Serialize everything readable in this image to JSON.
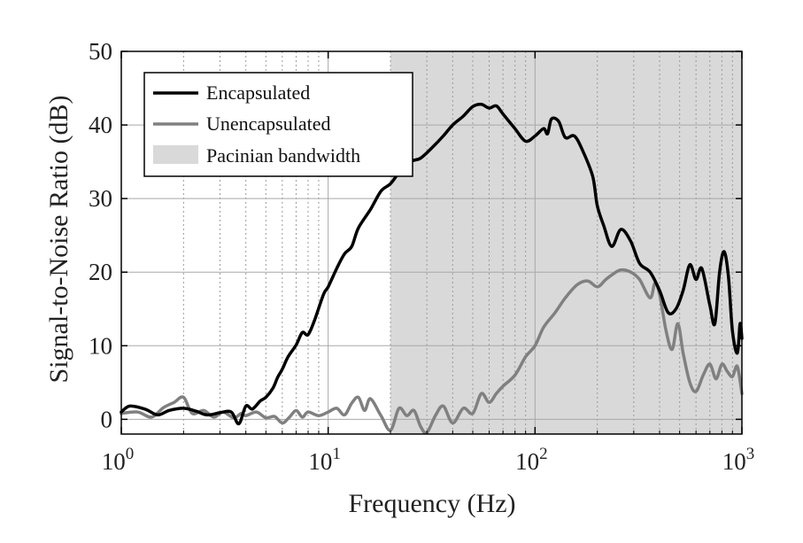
{
  "chart_data": {
    "type": "line",
    "title": "",
    "xlabel": "Frequency (Hz)",
    "ylabel": "Signal-to-Noise Ratio (dB)",
    "x_scale": "log",
    "xlim": [
      1,
      1000
    ],
    "ylim": [
      -2,
      50
    ],
    "y_ticks": [
      "0",
      "10",
      "20",
      "30",
      "40",
      "50"
    ],
    "x_ticks": [
      {
        "base": "10",
        "exp": "0",
        "value": 1
      },
      {
        "base": "10",
        "exp": "1",
        "value": 10
      },
      {
        "base": "10",
        "exp": "2",
        "value": 100
      },
      {
        "base": "10",
        "exp": "3",
        "value": 1000
      }
    ],
    "grid": true,
    "legend_position": "top-left",
    "band": {
      "name": "Pacinian bandwidth",
      "x_start": 20,
      "x_end": 1000,
      "color": "#d9d9d9"
    },
    "series": [
      {
        "name": "Encapsulated",
        "color": "#000000",
        "points": [
          [
            1.0,
            1.0
          ],
          [
            1.1,
            1.8
          ],
          [
            1.3,
            1.4
          ],
          [
            1.5,
            0.6
          ],
          [
            1.7,
            1.2
          ],
          [
            2.0,
            1.5
          ],
          [
            2.3,
            1.1
          ],
          [
            2.6,
            0.6
          ],
          [
            3.0,
            0.9
          ],
          [
            3.4,
            1.0
          ],
          [
            3.7,
            -0.6
          ],
          [
            4.0,
            1.8
          ],
          [
            4.3,
            1.4
          ],
          [
            4.7,
            2.5
          ],
          [
            5.0,
            3.0
          ],
          [
            5.4,
            4.2
          ],
          [
            5.7,
            5.7
          ],
          [
            6.0,
            6.8
          ],
          [
            6.4,
            8.5
          ],
          [
            7.0,
            10.1
          ],
          [
            7.5,
            11.8
          ],
          [
            8.0,
            11.5
          ],
          [
            8.6,
            13.5
          ],
          [
            9.5,
            17.0
          ],
          [
            10.0,
            18.0
          ],
          [
            11.0,
            20.5
          ],
          [
            12.0,
            22.5
          ],
          [
            13.0,
            23.5
          ],
          [
            14.0,
            26.0
          ],
          [
            16.0,
            28.5
          ],
          [
            18.0,
            31.0
          ],
          [
            20.0,
            32.0
          ],
          [
            22.0,
            33.5
          ],
          [
            25.0,
            35.0
          ],
          [
            28.0,
            35.5
          ],
          [
            32.0,
            37.0
          ],
          [
            36.0,
            38.5
          ],
          [
            40.0,
            40.0
          ],
          [
            45.0,
            41.2
          ],
          [
            50.0,
            42.5
          ],
          [
            55.0,
            42.8
          ],
          [
            60.0,
            42.3
          ],
          [
            65.0,
            42.6
          ],
          [
            70.0,
            41.5
          ],
          [
            80.0,
            39.5
          ],
          [
            90.0,
            37.8
          ],
          [
            100.0,
            38.5
          ],
          [
            110.0,
            39.5
          ],
          [
            115.0,
            38.8
          ],
          [
            120.0,
            40.8
          ],
          [
            130.0,
            40.5
          ],
          [
            140.0,
            38.3
          ],
          [
            155.0,
            38.5
          ],
          [
            170.0,
            36.5
          ],
          [
            190.0,
            33.0
          ],
          [
            200.0,
            29.0
          ],
          [
            215.0,
            26.3
          ],
          [
            235.0,
            23.5
          ],
          [
            260.0,
            25.8
          ],
          [
            290.0,
            24.2
          ],
          [
            320.0,
            21.2
          ],
          [
            360.0,
            20.0
          ],
          [
            400.0,
            17.5
          ],
          [
            440.0,
            14.5
          ],
          [
            480.0,
            15.0
          ],
          [
            520.0,
            17.5
          ],
          [
            560.0,
            21.0
          ],
          [
            600.0,
            19.0
          ],
          [
            640.0,
            20.5
          ],
          [
            700.0,
            15.5
          ],
          [
            740.0,
            13.0
          ],
          [
            780.0,
            20.0
          ],
          [
            820.0,
            22.8
          ],
          [
            860.0,
            19.5
          ],
          [
            900.0,
            12.0
          ],
          [
            950.0,
            9.0
          ],
          [
            980.0,
            13.0
          ],
          [
            1000.0,
            11.0
          ]
        ]
      },
      {
        "name": "Unencapsulated",
        "color": "#808080",
        "points": [
          [
            1.0,
            0.8
          ],
          [
            1.2,
            1.0
          ],
          [
            1.4,
            0.3
          ],
          [
            1.6,
            1.6
          ],
          [
            1.8,
            2.3
          ],
          [
            2.0,
            3.0
          ],
          [
            2.2,
            0.8
          ],
          [
            2.5,
            1.2
          ],
          [
            2.8,
            0.3
          ],
          [
            3.1,
            1.0
          ],
          [
            3.5,
            0.2
          ],
          [
            3.8,
            0.8
          ],
          [
            4.0,
            0.5
          ],
          [
            4.5,
            1.0
          ],
          [
            5.0,
            0.2
          ],
          [
            5.5,
            0.4
          ],
          [
            6.0,
            -0.5
          ],
          [
            6.5,
            0.3
          ],
          [
            7.0,
            1.2
          ],
          [
            7.5,
            0.3
          ],
          [
            8.0,
            1.0
          ],
          [
            9.0,
            0.5
          ],
          [
            10.0,
            1.0
          ],
          [
            11.0,
            1.5
          ],
          [
            12.0,
            0.6
          ],
          [
            13.0,
            2.2
          ],
          [
            14.0,
            3.0
          ],
          [
            15.0,
            1.2
          ],
          [
            16.0,
            2.8
          ],
          [
            18.0,
            0.5
          ],
          [
            20.0,
            -1.5
          ],
          [
            22.0,
            1.5
          ],
          [
            24.0,
            0.5
          ],
          [
            26.0,
            1.2
          ],
          [
            28.0,
            -1.0
          ],
          [
            30.0,
            -1.8
          ],
          [
            33.0,
            0.5
          ],
          [
            36.0,
            1.8
          ],
          [
            40.0,
            -0.5
          ],
          [
            45.0,
            1.5
          ],
          [
            50.0,
            0.8
          ],
          [
            55.0,
            3.5
          ],
          [
            60.0,
            2.3
          ],
          [
            65.0,
            3.5
          ],
          [
            70.0,
            4.5
          ],
          [
            80.0,
            6.0
          ],
          [
            90.0,
            8.5
          ],
          [
            100.0,
            10.0
          ],
          [
            110.0,
            12.5
          ],
          [
            125.0,
            14.5
          ],
          [
            140.0,
            16.5
          ],
          [
            160.0,
            18.3
          ],
          [
            180.0,
            18.8
          ],
          [
            200.0,
            18.0
          ],
          [
            220.0,
            19.0
          ],
          [
            240.0,
            19.8
          ],
          [
            260.0,
            20.3
          ],
          [
            290.0,
            20.0
          ],
          [
            320.0,
            19.0
          ],
          [
            360.0,
            16.5
          ],
          [
            380.0,
            18.5
          ],
          [
            400.0,
            17.0
          ],
          [
            430.0,
            12.0
          ],
          [
            460.0,
            9.5
          ],
          [
            490.0,
            13.0
          ],
          [
            520.0,
            9.0
          ],
          [
            560.0,
            5.0
          ],
          [
            600.0,
            3.8
          ],
          [
            650.0,
            6.0
          ],
          [
            700.0,
            7.5
          ],
          [
            750.0,
            5.5
          ],
          [
            800.0,
            7.5
          ],
          [
            850.0,
            6.5
          ],
          [
            900.0,
            5.8
          ],
          [
            950.0,
            7.2
          ],
          [
            1000.0,
            3.5
          ]
        ]
      }
    ]
  },
  "legend": {
    "items": [
      {
        "label": "Encapsulated",
        "swatch": "line",
        "color": "#000000"
      },
      {
        "label": "Unencapsulated",
        "swatch": "line",
        "color": "#808080"
      },
      {
        "label": "Pacinian bandwidth",
        "swatch": "patch",
        "color": "#d9d9d9"
      }
    ]
  }
}
